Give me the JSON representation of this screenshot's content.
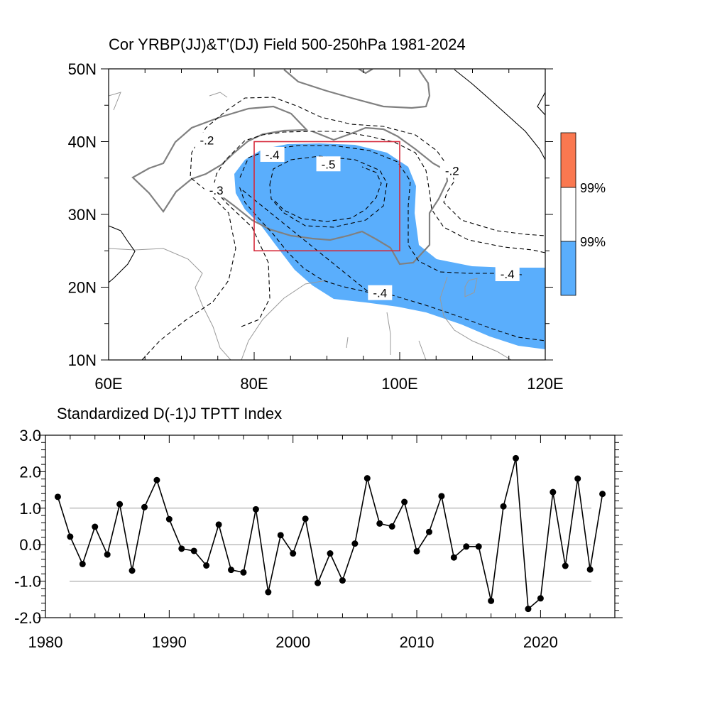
{
  "chart_data": [
    {
      "type": "heatmap",
      "title": "Cor YRBP(JJ)&T'(DJ) Field 500-250hPa 1981-2024",
      "x_ticks": [
        "60E",
        "80E",
        "100E",
        "120E"
      ],
      "x_tick_values": [
        60,
        80,
        100,
        120
      ],
      "y_ticks": [
        "10N",
        "20N",
        "30N",
        "40N",
        "50N"
      ],
      "y_tick_values": [
        10,
        20,
        30,
        40,
        50
      ],
      "xlim": [
        60,
        120
      ],
      "ylim": [
        10,
        50
      ],
      "box": {
        "lon": [
          80,
          100
        ],
        "lat": [
          25,
          40
        ],
        "color": "#d62839"
      },
      "significance_colors": {
        "negative": "#5aaefc",
        "positive": "#fa7850"
      },
      "contour_labels": [
        {
          "text": "-.2",
          "lon": 73.5,
          "lat": 40.2
        },
        {
          "text": "-.3",
          "lon": 74.8,
          "lat": 33.3
        },
        {
          "text": "-.4",
          "lon": 82.5,
          "lat": 38.2
        },
        {
          "text": "-.5",
          "lon": 90.2,
          "lat": 36.9
        },
        {
          "text": "-.2",
          "lon": 107.2,
          "lat": 36.0
        },
        {
          "text": "-.4",
          "lon": 114.8,
          "lat": 21.8
        },
        {
          "text": "-.4",
          "lon": 97.3,
          "lat": 19.2
        }
      ],
      "legend": {
        "labels": [
          "99%",
          "99%"
        ],
        "colors": [
          "#fa7850",
          "#ffffff",
          "#5aaefc"
        ]
      }
    },
    {
      "type": "line",
      "title": "Standardized D(-1)J TPTT Index",
      "xlim": [
        1980,
        2026
      ],
      "ylim": [
        -2.0,
        3.0
      ],
      "x_ticks": [
        "1980",
        "1990",
        "2000",
        "2010",
        "2020"
      ],
      "x_tick_values": [
        1980,
        1990,
        2000,
        2010,
        2020
      ],
      "y_ticks": [
        "3.0",
        "2.0",
        "1.0",
        "0.0",
        "-1.0",
        "-2.0"
      ],
      "y_tick_values": [
        3,
        2,
        1,
        0,
        -1,
        -2
      ],
      "reference_lines": [
        1,
        0,
        -1
      ],
      "x": [
        1981,
        1982,
        1983,
        1984,
        1985,
        1986,
        1987,
        1988,
        1989,
        1990,
        1991,
        1992,
        1993,
        1994,
        1995,
        1996,
        1997,
        1998,
        1999,
        2000,
        2001,
        2002,
        2003,
        2004,
        2005,
        2006,
        2007,
        2008,
        2009,
        2010,
        2011,
        2012,
        2013,
        2014,
        2015,
        2016,
        2017,
        2018,
        2019,
        2020,
        2021,
        2022,
        2023,
        2024,
        2025
      ],
      "values": [
        1.31,
        0.22,
        -0.53,
        0.49,
        -0.27,
        1.11,
        -0.71,
        1.03,
        1.77,
        0.7,
        -0.11,
        -0.17,
        -0.57,
        0.55,
        -0.69,
        -0.76,
        0.97,
        -1.3,
        0.26,
        -0.24,
        0.71,
        -1.05,
        -0.24,
        -0.98,
        0.03,
        1.82,
        0.58,
        0.5,
        1.17,
        -0.18,
        0.35,
        1.33,
        -0.35,
        -0.05,
        -0.05,
        -1.54,
        1.05,
        2.37,
        -1.76,
        -1.47,
        1.44,
        -0.58,
        1.81,
        -0.68,
        1.39
      ]
    }
  ]
}
